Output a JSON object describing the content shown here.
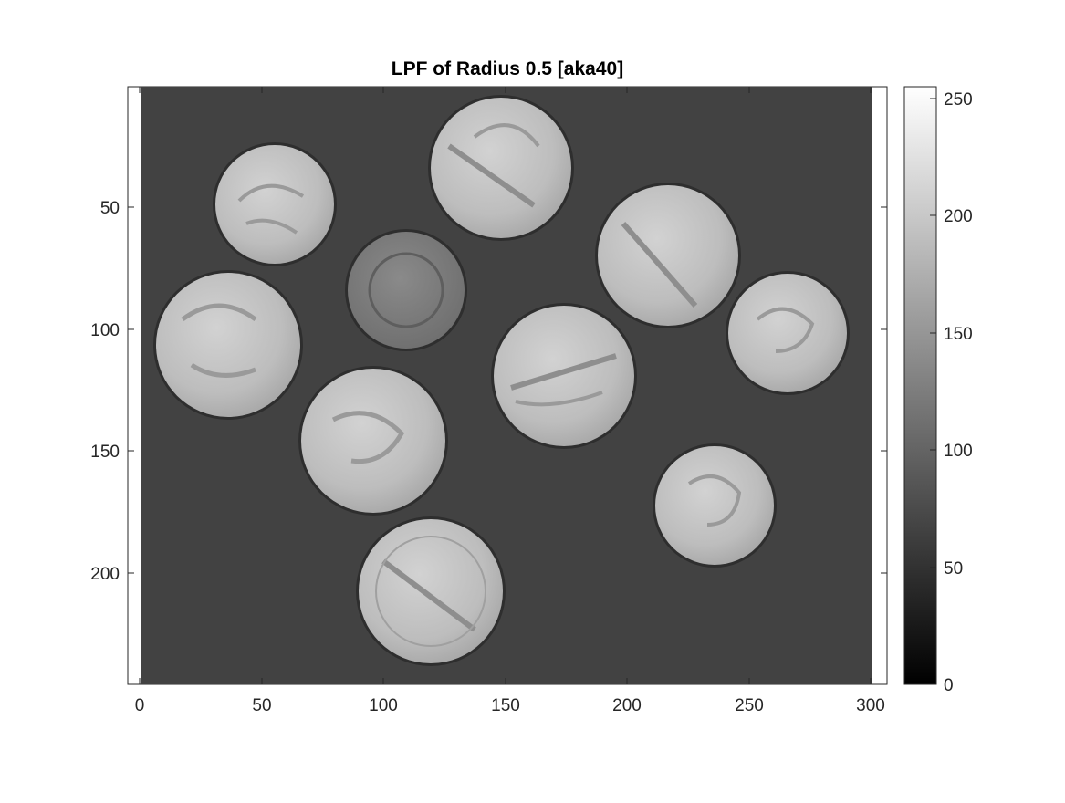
{
  "figure": {
    "title": "LPF of Radius 0.5 [aka40]"
  },
  "image_axes": {
    "x_ticks": [
      "0",
      "50",
      "100",
      "150",
      "200",
      "250",
      "300"
    ],
    "y_ticks": [
      "50",
      "100",
      "150",
      "200"
    ],
    "x_range": [
      0,
      300
    ],
    "y_range": [
      0,
      246
    ]
  },
  "colorbar": {
    "ticks": [
      "0",
      "50",
      "100",
      "150",
      "200",
      "250"
    ],
    "range": [
      0,
      255
    ],
    "colormap": "gray"
  },
  "colors": {
    "background": "#424242",
    "frame": "#262626"
  },
  "content": {
    "subject": "coins",
    "count": 10
  }
}
